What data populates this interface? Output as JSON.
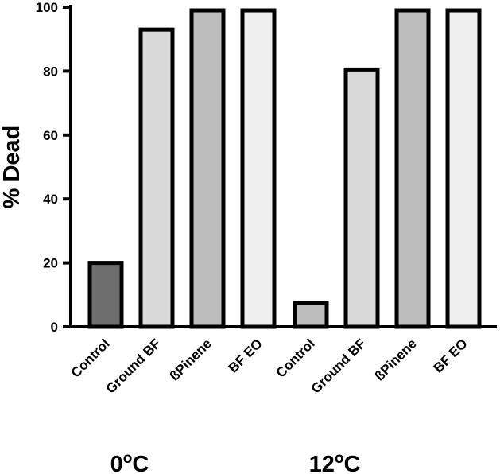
{
  "chart_data": {
    "type": "bar",
    "ylabel": "% Dead",
    "ylim": [
      0,
      100
    ],
    "yticks": [
      0,
      20,
      40,
      60,
      80,
      100
    ],
    "grid": false,
    "groups": [
      {
        "label": "0°C",
        "label_base": "0",
        "label_sup": "o",
        "label_unit": "C",
        "bars": [
          {
            "category": "Control",
            "value": 20,
            "color": "#6e6e6e"
          },
          {
            "category": "Ground BF",
            "value": 93,
            "color": "#d9d9d9"
          },
          {
            "category": "ßPinene",
            "value": 99,
            "color": "#bdbdbd"
          },
          {
            "category": "BF EO",
            "value": 99,
            "color": "#efefef"
          }
        ]
      },
      {
        "label": "12°C",
        "label_base": "12",
        "label_sup": "o",
        "label_unit": "C",
        "bars": [
          {
            "category": "Control",
            "value": 7.5,
            "color": "#bdbdbd"
          },
          {
            "category": "Ground BF",
            "value": 80.5,
            "color": "#d9d9d9"
          },
          {
            "category": "ßPinene",
            "value": 99,
            "color": "#bdbdbd"
          },
          {
            "category": "BF EO",
            "value": 99,
            "color": "#efefef"
          }
        ]
      }
    ]
  }
}
